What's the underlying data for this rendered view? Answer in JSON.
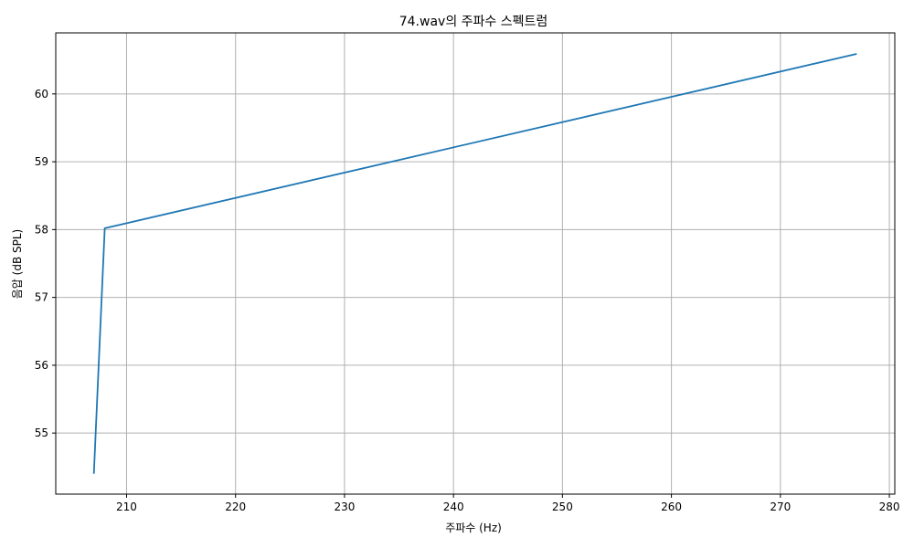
{
  "chart_data": {
    "type": "line",
    "title": "74.wav의 주파수 스펙트럼",
    "xlabel": "주파수 (Hz)",
    "ylabel": "음압 (dB SPL)",
    "xlim": [
      203.5,
      280.5
    ],
    "ylim": [
      54.1,
      60.9
    ],
    "grid": true,
    "x_ticks": [
      210,
      220,
      230,
      240,
      250,
      260,
      270,
      280
    ],
    "y_ticks": [
      55,
      56,
      57,
      58,
      59,
      60
    ],
    "series": [
      {
        "color": "#1f77b4",
        "x": [
          207,
          208,
          277
        ],
        "y": [
          54.4,
          58.02,
          60.59
        ]
      }
    ]
  }
}
